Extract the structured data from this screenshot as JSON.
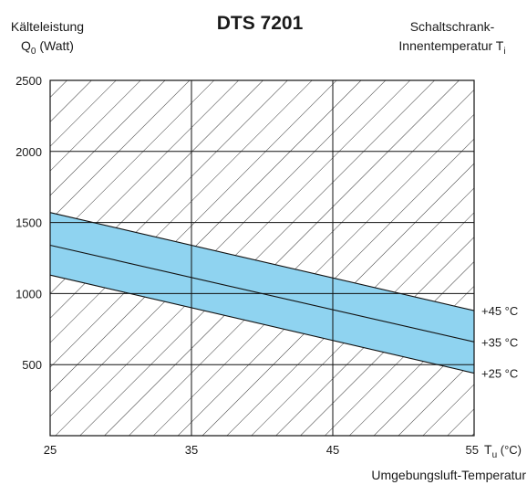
{
  "chart_data": {
    "type": "area",
    "title": "DTS 7201",
    "ylabel": {
      "line1": "Kälteleistung",
      "line2_main": "Q",
      "line2_sub": "0",
      "line2_rest": " (Watt)"
    },
    "series_label": {
      "line1": "Schaltschrank-",
      "line2_main": "Innentemperatur T",
      "line2_sub": "i"
    },
    "xlabel": "Umgebungsluft-Temperatur",
    "x_unit": {
      "main": "T",
      "sub": "u",
      "rest": " (°C)"
    },
    "xlim": [
      25,
      55
    ],
    "ylim": [
      0,
      2500
    ],
    "x_ticks": [
      "25",
      "35",
      "45",
      "55"
    ],
    "y_ticks": [
      "500",
      "1000",
      "1500",
      "2000",
      "2500"
    ],
    "grid": true,
    "band_color": "#8fd3f0",
    "series": [
      {
        "name": "+45 °C",
        "x": [
          25,
          55
        ],
        "y": [
          1570,
          880
        ]
      },
      {
        "name": "+35 °C",
        "x": [
          25,
          55
        ],
        "y": [
          1340,
          660
        ]
      },
      {
        "name": "+25 °C",
        "x": [
          25,
          55
        ],
        "y": [
          1130,
          440
        ]
      }
    ]
  }
}
